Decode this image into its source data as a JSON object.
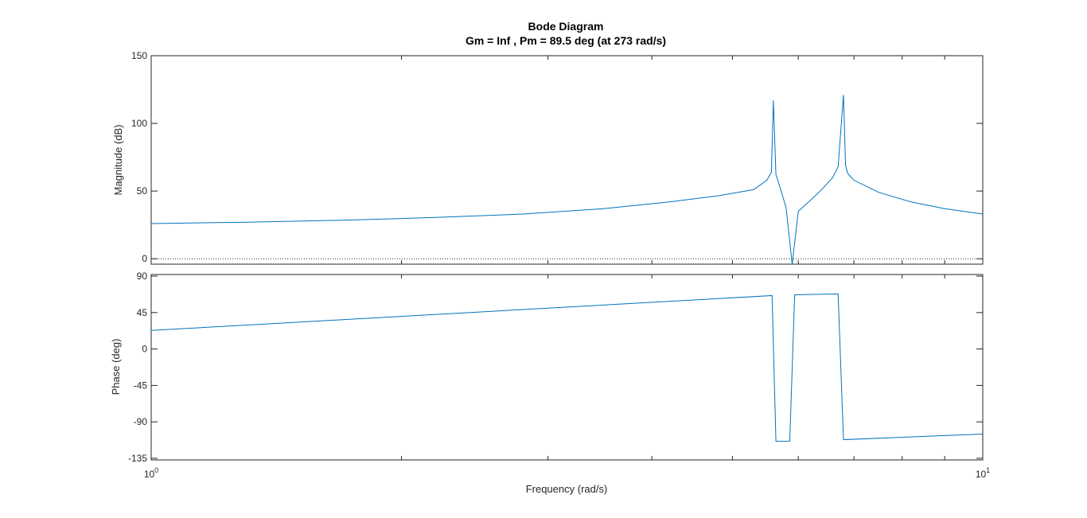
{
  "chart_data": {
    "type": "line",
    "title": "Bode Diagram",
    "subtitle": "Gm = Inf ,  Pm = 89.5 deg (at 273 rad/s)",
    "xlabel": "Frequency  (rad/s)",
    "xscale": "log",
    "xlim": [
      1,
      10
    ],
    "x_tick_labels": [
      {
        "value": 1,
        "base": "10",
        "exp": "0"
      },
      {
        "value": 10,
        "base": "10",
        "exp": "1"
      }
    ],
    "grid": false,
    "line_color": "#0072BD",
    "panels": [
      {
        "name": "magnitude",
        "ylabel": "Magnitude (dB)",
        "ylim": [
          -4,
          150
        ],
        "yticks": [
          0,
          50,
          100,
          150
        ],
        "ytick_labels": [
          "0",
          "50",
          "100",
          "150"
        ],
        "reference_line": {
          "y": 0,
          "style": "dotted"
        },
        "x": [
          1,
          1.3,
          1.7,
          2.2,
          2.8,
          3.5,
          4.2,
          4.8,
          5.3,
          5.5,
          5.57,
          5.6,
          5.64,
          5.67,
          5.8,
          5.9,
          6.0,
          6.2,
          6.4,
          6.6,
          6.7,
          6.8,
          6.84,
          6.88,
          7.0,
          7.5,
          8.2,
          9.0,
          10
        ],
        "y": [
          26,
          27,
          28.5,
          30.5,
          33,
          37,
          42,
          46.5,
          51,
          58,
          64,
          117,
          62,
          58,
          38,
          -4,
          35,
          43,
          51,
          60,
          68,
          121,
          69,
          63,
          58,
          49,
          42,
          37,
          33
        ]
      },
      {
        "name": "phase",
        "ylabel": "Phase (deg)",
        "ylim": [
          -137,
          92
        ],
        "yticks": [
          -135,
          -90,
          -45,
          0,
          45,
          90
        ],
        "ytick_labels": [
          "-135",
          "-90",
          "-45",
          "0",
          "45",
          "90"
        ],
        "x": [
          1,
          5.58,
          5.64,
          5.86,
          5.94,
          6.7,
          6.8,
          10
        ],
        "y": [
          23,
          66,
          -114,
          -114,
          67,
          68,
          -112,
          -105
        ]
      }
    ]
  }
}
